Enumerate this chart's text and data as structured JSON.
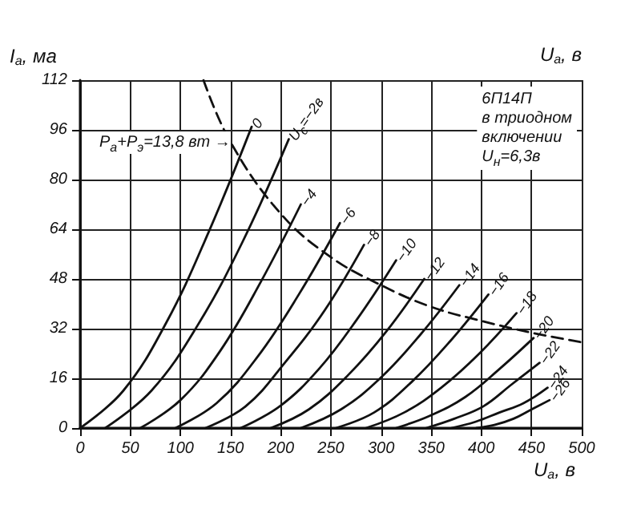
{
  "chart_data": {
    "type": "line",
    "xlabel": "U$_{a}$, в",
    "ylabel": "I$_{a}$, ма",
    "xlim": [
      0,
      500
    ],
    "xticks": [
      0,
      50,
      100,
      150,
      200,
      250,
      300,
      350,
      400,
      450,
      500
    ],
    "ylim": [
      0,
      112
    ],
    "yticks": [
      0,
      16,
      32,
      48,
      64,
      80,
      96,
      112
    ],
    "grid": true,
    "marker": "none",
    "series": [
      {
        "name": "0",
        "color": "#111111",
        "x": [
          0,
          43,
          86,
          128,
          171
        ],
        "values": [
          0,
          12,
          34,
          63,
          97
        ]
      },
      {
        "name": "U$_{c}$=−2в",
        "color": "#111111",
        "x": [
          25,
          71,
          117,
          162,
          208
        ],
        "values": [
          0,
          12,
          33,
          60,
          93
        ]
      },
      {
        "name": "−4",
        "color": "#111111",
        "x": [
          60,
          100,
          140,
          180,
          220
        ],
        "values": [
          0,
          9,
          25,
          47,
          72
        ]
      },
      {
        "name": "−6",
        "color": "#111111",
        "x": [
          95,
          136,
          177,
          218,
          259
        ],
        "values": [
          0,
          8,
          23,
          43,
          66
        ]
      },
      {
        "name": "−8",
        "color": "#111111",
        "x": [
          125,
          165,
          204,
          244,
          283
        ],
        "values": [
          0,
          7,
          21,
          38,
          59
        ]
      },
      {
        "name": "−10",
        "color": "#111111",
        "x": [
          160,
          199,
          238,
          276,
          315
        ],
        "values": [
          0,
          7,
          19,
          35,
          54
        ]
      },
      {
        "name": "−12",
        "color": "#111111",
        "x": [
          190,
          228,
          267,
          305,
          343
        ],
        "values": [
          0,
          6,
          17,
          31,
          48
        ]
      },
      {
        "name": "−14",
        "color": "#111111",
        "x": [
          220,
          260,
          299,
          339,
          378
        ],
        "values": [
          0,
          6,
          16,
          30,
          46
        ]
      },
      {
        "name": "−16",
        "color": "#111111",
        "x": [
          255,
          293,
          331,
          369,
          407
        ],
        "values": [
          0,
          5,
          15,
          28,
          43
        ]
      },
      {
        "name": "−18",
        "color": "#111111",
        "x": [
          285,
          323,
          360,
          398,
          435
        ],
        "values": [
          0,
          5,
          13,
          24,
          37
        ]
      },
      {
        "name": "−20",
        "color": "#111111",
        "x": [
          315,
          349,
          384,
          418,
          452
        ],
        "values": [
          0,
          4,
          10,
          19,
          29
        ]
      },
      {
        "name": "−22",
        "color": "#111111",
        "x": [
          345,
          373,
          402,
          430,
          458
        ],
        "values": [
          0,
          3,
          7,
          14,
          21
        ]
      },
      {
        "name": "−24",
        "color": "#111111",
        "x": [
          370,
          394,
          418,
          442,
          466
        ],
        "values": [
          0,
          2,
          5,
          8,
          13
        ]
      },
      {
        "name": "−26",
        "color": "#111111",
        "x": [
          395,
          413,
          432,
          450,
          468
        ],
        "values": [
          0,
          1,
          3,
          6,
          9
        ]
      },
      {
        "color": "#111111",
        "line_style": "dashed",
        "x": [
          123,
          150,
          200,
          250,
          300,
          350,
          400,
          450,
          500
        ],
        "values": [
          112,
          92,
          69,
          55,
          46,
          39,
          34.5,
          30.7,
          27.6
        ]
      }
    ],
    "annotations": [
      "U$_{a}$, в",
      "6П14П\nв триодном\nвключении\nU$_{н}$=6,3в",
      "P$_{a}$+P$_{э}$=13,8 вт →"
    ]
  }
}
